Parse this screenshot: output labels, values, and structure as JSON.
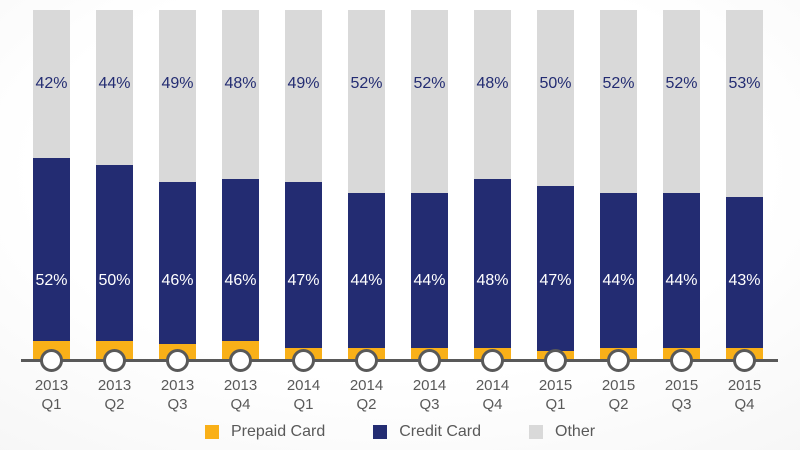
{
  "chart_data": {
    "type": "bar",
    "stacked": true,
    "unit": "%",
    "ylim": [
      0,
      100
    ],
    "grid": false,
    "legend_position": "bottom",
    "categories": [
      {
        "year": "2013",
        "quarter": "Q1"
      },
      {
        "year": "2013",
        "quarter": "Q2"
      },
      {
        "year": "2013",
        "quarter": "Q3"
      },
      {
        "year": "2013",
        "quarter": "Q4"
      },
      {
        "year": "2014",
        "quarter": "Q1"
      },
      {
        "year": "2014",
        "quarter": "Q2"
      },
      {
        "year": "2014",
        "quarter": "Q3"
      },
      {
        "year": "2014",
        "quarter": "Q4"
      },
      {
        "year": "2015",
        "quarter": "Q1"
      },
      {
        "year": "2015",
        "quarter": "Q2"
      },
      {
        "year": "2015",
        "quarter": "Q3"
      },
      {
        "year": "2015",
        "quarter": "Q4"
      }
    ],
    "series": [
      {
        "key": "prepaid",
        "name": "Prepaid Card",
        "color": "#F9B018",
        "values": [
          6,
          6,
          5,
          6,
          4,
          4,
          4,
          4,
          3,
          4,
          4,
          4
        ],
        "labels_shown": false,
        "label_color": null
      },
      {
        "key": "credit",
        "name": "Credit Card",
        "color": "#232C72",
        "values": [
          52,
          50,
          46,
          46,
          47,
          44,
          44,
          48,
          47,
          44,
          44,
          43
        ],
        "labels_shown": true,
        "label_color": "#FFFFFF"
      },
      {
        "key": "other",
        "name": "Other",
        "color": "#D9D9D9",
        "values": [
          42,
          44,
          49,
          48,
          49,
          52,
          52,
          48,
          50,
          52,
          52,
          53
        ],
        "labels_shown": true,
        "label_color": "#232C72"
      }
    ],
    "axis": {
      "line_color": "#595959",
      "marker_fill": "#FFFFFF",
      "marker_border": "#595959",
      "label_color": "#595959"
    }
  }
}
